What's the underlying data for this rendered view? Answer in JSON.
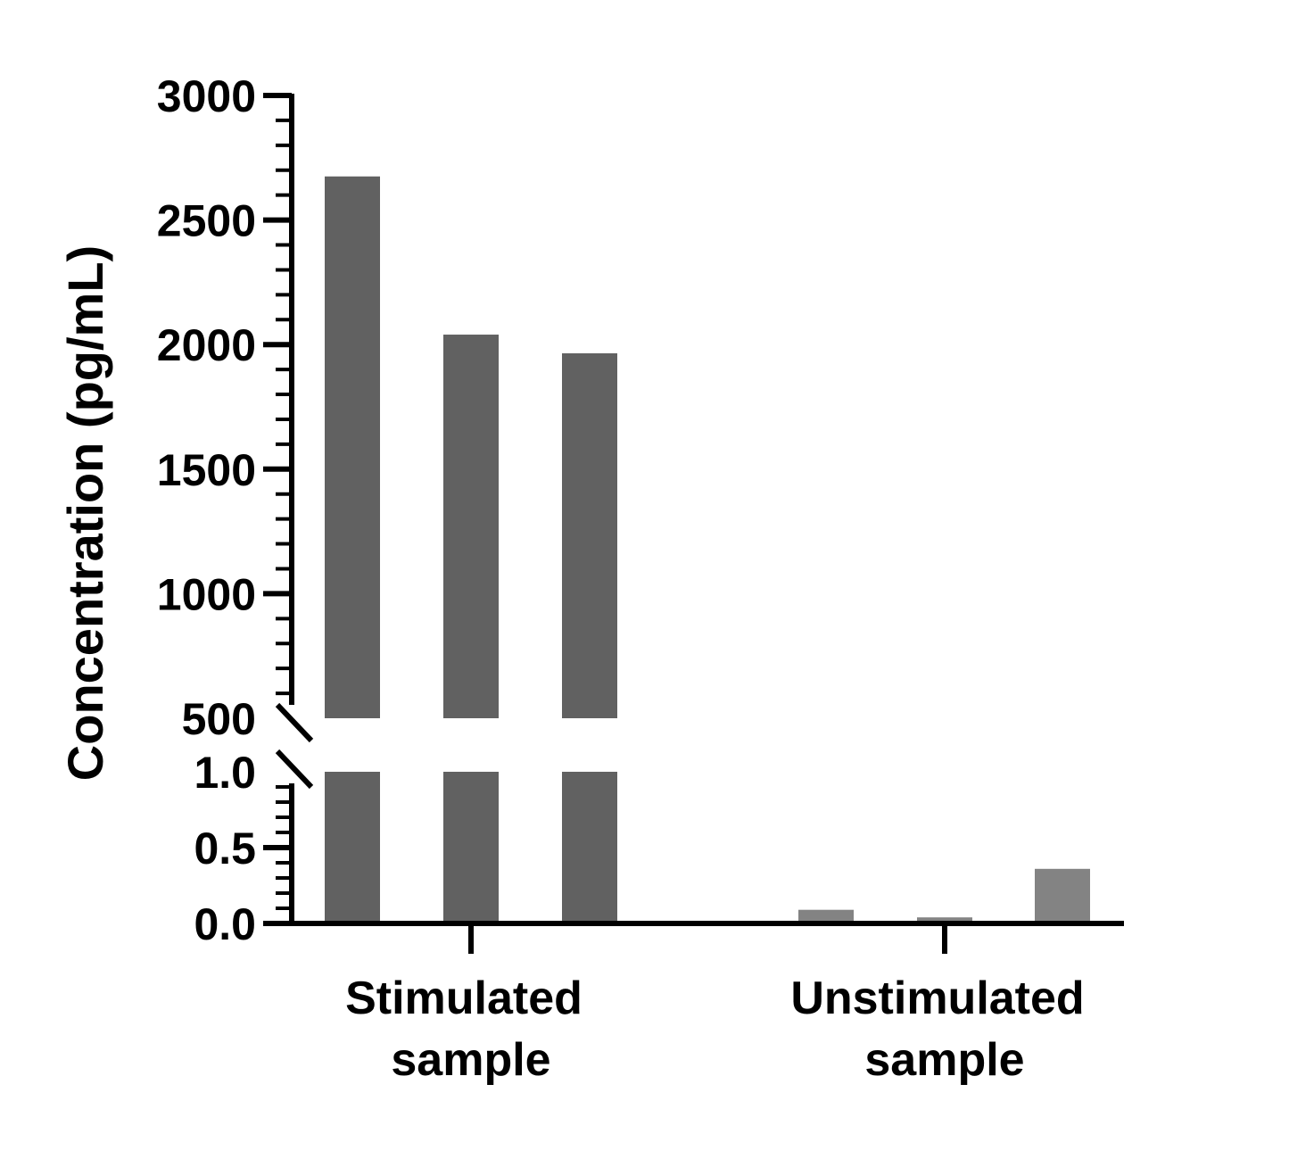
{
  "chart_data": {
    "type": "bar",
    "ylabel": "Concentration (pg/mL)",
    "y_axis_break": true,
    "lower_ylim": [
      0,
      1.0
    ],
    "upper_ylim": [
      500,
      3000
    ],
    "lower_ticks": [
      "0.0",
      "0.5",
      "1.0"
    ],
    "upper_ticks": [
      "500",
      "1000",
      "1500",
      "2000",
      "2500",
      "3000"
    ],
    "categories": [
      {
        "line1": "Stimulated",
        "line2": "sample",
        "values": [
          2675,
          2040,
          1965
        ],
        "color": "#616161"
      },
      {
        "line1": "Unstimulated",
        "line2": "sample",
        "values": [
          0.09,
          0.04,
          0.36
        ],
        "color": "#838383"
      }
    ],
    "grid": false,
    "legend": "none"
  }
}
